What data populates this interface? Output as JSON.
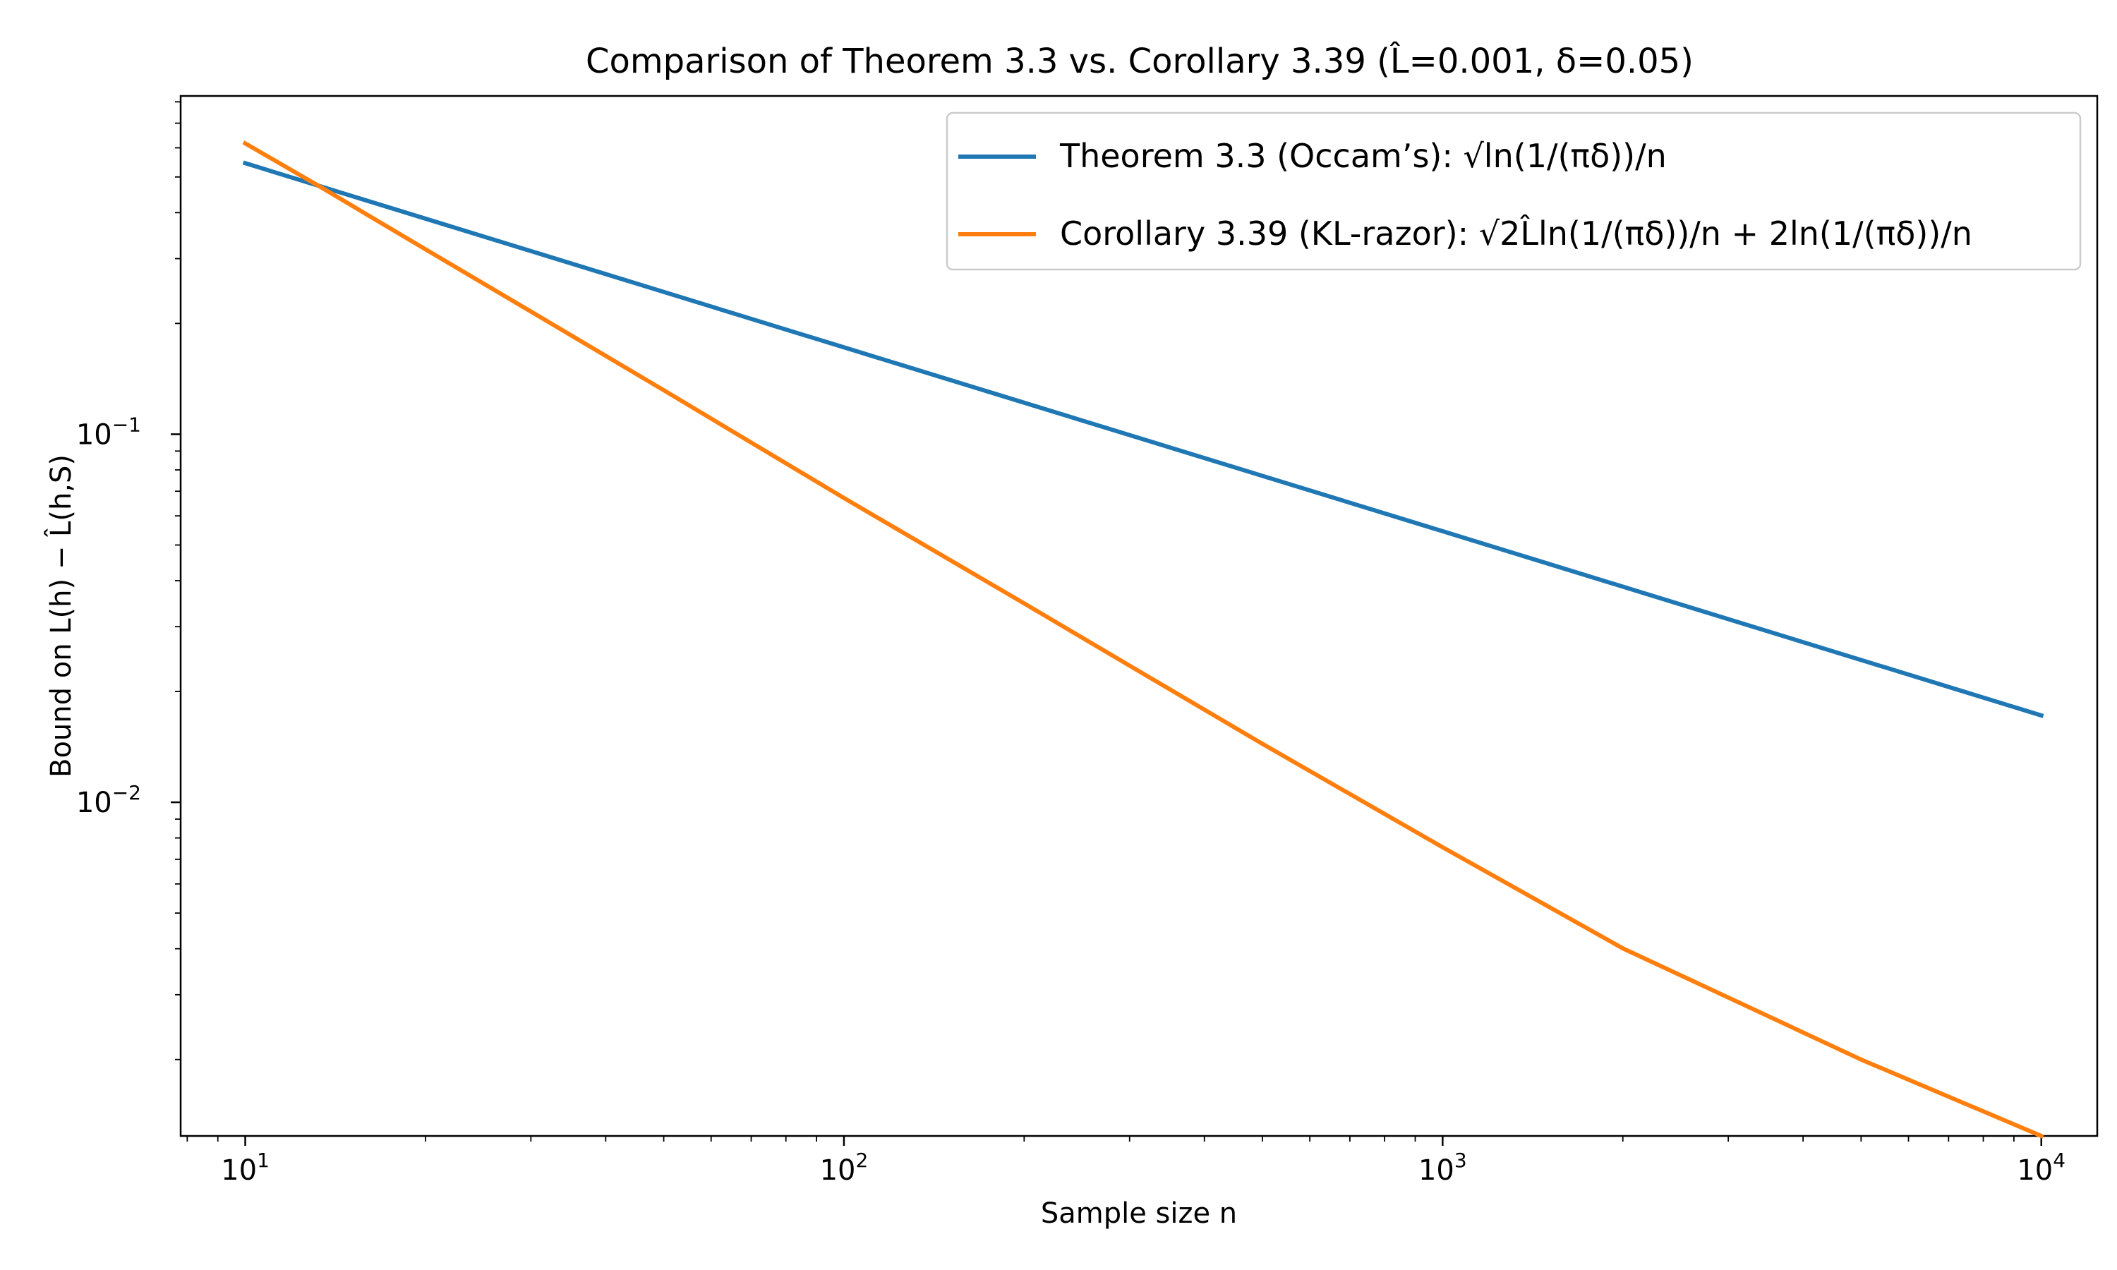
{
  "chart_data": {
    "type": "line",
    "title": "Comparison of Theorem 3.3 vs. Corollary 3.39 (L̂=0.001, δ=0.05)",
    "xlabel": "Sample size n",
    "ylabel": "Bound on L(h) − L̂(h,S)",
    "xscale": "log",
    "yscale": "log",
    "xlim": [
      7.8,
      12400
    ],
    "ylim": [
      0.00124,
      0.83
    ],
    "x_tick_labels": [
      {
        "base": "10",
        "exp": "1"
      },
      {
        "base": "10",
        "exp": "2"
      },
      {
        "base": "10",
        "exp": "3"
      },
      {
        "base": "10",
        "exp": "4"
      }
    ],
    "y_tick_labels": [
      {
        "base": "10",
        "exp": "−2"
      },
      {
        "base": "10",
        "exp": "−1"
      }
    ],
    "grid": false,
    "legend_position": "top-right",
    "series": [
      {
        "name": "Theorem 3.3 (Occam’s): √ln(1/(πδ))/n",
        "color": "#1f77b4",
        "x": [
          10,
          100,
          1000,
          10000
        ],
        "y": [
          0.545,
          0.1722,
          0.0545,
          0.01722
        ]
      },
      {
        "name": "Corollary 3.39 (KL-razor): √2L̂ln(1/(πδ))/n + 2ln(1/(πδ))/n",
        "color": "#ff7f0e",
        "x": [
          10,
          13.2,
          20,
          30,
          50,
          100,
          200,
          300,
          500,
          1000,
          2000,
          5000,
          10000
        ],
        "y": [
          0.617,
          0.475,
          0.318,
          0.2155,
          0.1317,
          0.0671,
          0.0347,
          0.02351,
          0.01442,
          0.00755,
          0.00401,
          0.002,
          0.00124
        ]
      }
    ]
  }
}
